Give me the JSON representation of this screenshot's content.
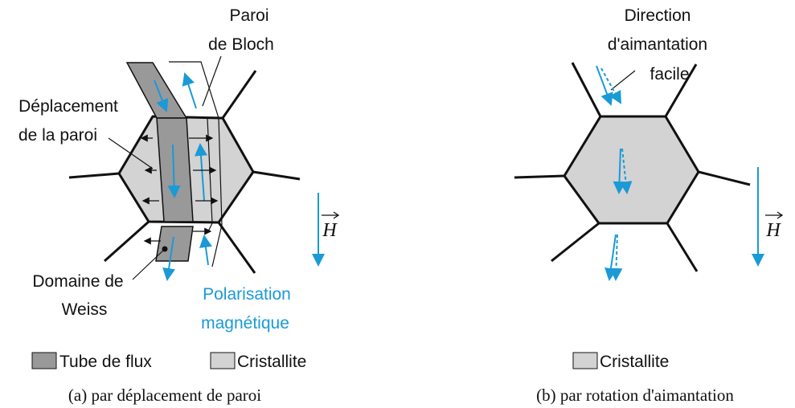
{
  "panels": [
    {
      "labels": [
        {
          "lines": [
            "Paroi",
            "de Bloch"
          ]
        },
        {
          "lines": [
            "Déplacement",
            "de la paroi"
          ]
        },
        {
          "lines": [
            "Domaine de",
            "Weiss"
          ]
        },
        {
          "lines": [
            "Polarisation",
            "magnétique"
          ]
        }
      ],
      "field_label": "H",
      "legend": [
        "Tube de flux",
        "Cristallite"
      ],
      "caption": "(a) par déplacement de paroi"
    },
    {
      "labels": [
        {
          "lines": [
            "Direction",
            "d'aimantation",
            "facile"
          ]
        }
      ],
      "field_label": "H",
      "legend": [
        "Cristallite"
      ],
      "caption": "(b) par rotation d'aimantation"
    }
  ]
}
